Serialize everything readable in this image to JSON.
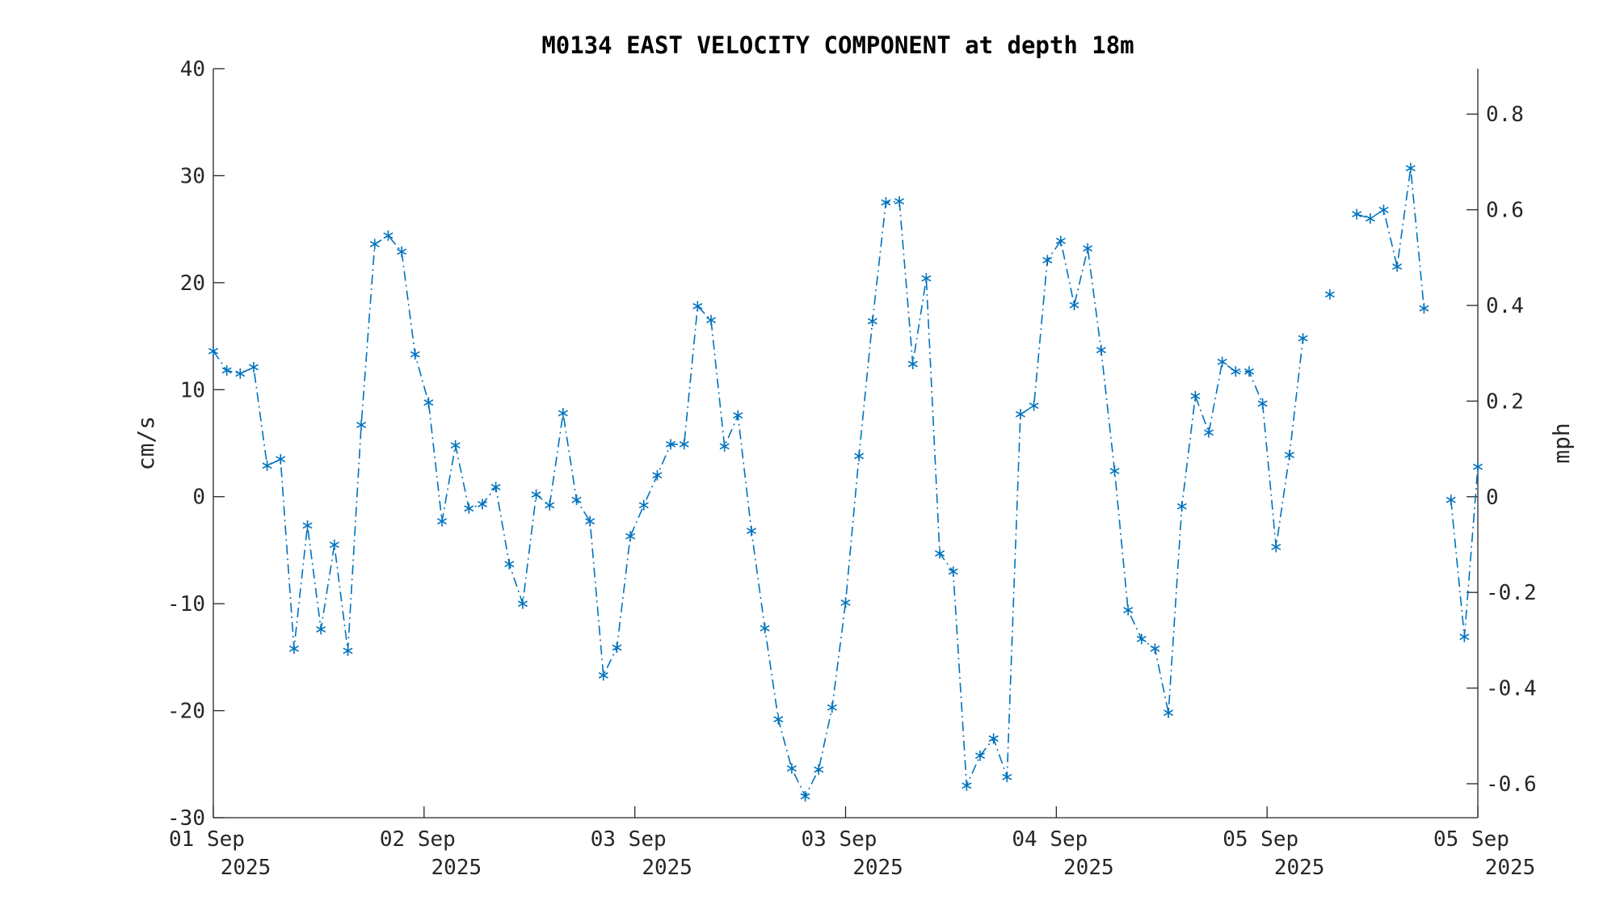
{
  "chart_data": {
    "type": "line",
    "title": "M0134 EAST VELOCITY COMPONENT at depth 18m",
    "ylabel": "cm/s",
    "ylabel_right": "mph",
    "ylim": [
      -30,
      40
    ],
    "ylim_right": [
      -0.671,
      0.895
    ],
    "yticks": [
      "40",
      "30",
      "20",
      "10",
      "0",
      "-10",
      "-20",
      "-30"
    ],
    "yticks_right": [
      "0.8",
      "0.6",
      "0.4",
      "0.2",
      "0",
      "-0.2",
      "-0.4",
      "-0.6"
    ],
    "xticks": [
      {
        "date": "01 Sep",
        "year": "2025"
      },
      {
        "date": "02 Sep",
        "year": "2025"
      },
      {
        "date": "03 Sep",
        "year": "2025"
      },
      {
        "date": "03 Sep",
        "year": "2025"
      },
      {
        "date": "04 Sep",
        "year": "2025"
      },
      {
        "date": "05 Sep",
        "year": "2025"
      },
      {
        "date": "05 Sep",
        "year": "2025"
      }
    ],
    "series": [
      {
        "color": "#0072BD",
        "marker": "asterisk",
        "line_style": "dash-dot",
        "values": [
          13.6,
          11.8,
          11.5,
          12.1,
          2.9,
          3.5,
          -14.2,
          -2.7,
          -12.4,
          -4.5,
          -14.4,
          6.7,
          23.6,
          24.4,
          22.9,
          13.3,
          8.8,
          -2.3,
          4.8,
          -1.1,
          -0.7,
          0.9,
          -6.3,
          -10.0,
          0.2,
          -0.8,
          7.8,
          -0.3,
          -2.3,
          -16.7,
          -14.1,
          -3.7,
          -0.8,
          2.0,
          4.9,
          4.9,
          17.8,
          16.5,
          4.7,
          7.6,
          -3.2,
          -12.3,
          -20.8,
          -25.4,
          -28.0,
          -25.5,
          -19.7,
          -9.9,
          3.8,
          16.4,
          27.5,
          27.6,
          12.4,
          20.4,
          -5.3,
          -7.0,
          -27.0,
          -24.2,
          -22.6,
          -26.2,
          7.7,
          8.5,
          22.1,
          23.9,
          17.9,
          23.2,
          13.7,
          2.4,
          -10.6,
          -13.3,
          -14.2,
          -20.2,
          -0.9,
          9.4,
          6.0,
          12.6,
          11.7,
          11.7,
          8.7,
          -4.7,
          3.9,
          14.8,
          null,
          18.9,
          null,
          26.4,
          26.0,
          26.8,
          21.5,
          30.7,
          17.6,
          null,
          -0.3,
          -13.1,
          2.8
        ]
      }
    ]
  }
}
